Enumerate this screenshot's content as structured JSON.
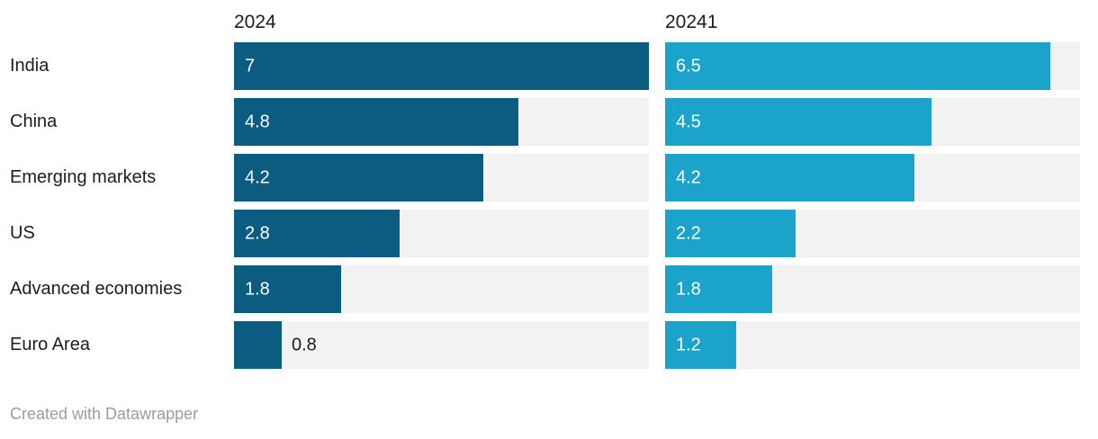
{
  "chart_data": {
    "type": "bar",
    "layout": "split-bars-horizontal",
    "categories": [
      "India",
      "China",
      "Emerging markets",
      "US",
      "Advanced economies",
      "Euro Area"
    ],
    "series": [
      {
        "name": "2024",
        "values": [
          7,
          4.8,
          4.2,
          2.8,
          1.8,
          0.8
        ],
        "labels": [
          "7",
          "4.8",
          "4.2",
          "2.8",
          "1.8",
          "0.8"
        ],
        "color": "#0b5c80"
      },
      {
        "name": "20241",
        "values": [
          6.5,
          4.5,
          4.2,
          2.2,
          1.8,
          1.2
        ],
        "labels": [
          "6.5",
          "4.5",
          "4.2",
          "2.2",
          "1.8",
          "1.2"
        ],
        "color": "#1ba3cc"
      }
    ],
    "xmax": 7,
    "grid": "off",
    "legend": "column-headers-above-bars",
    "track_color": "#f2f2f2",
    "value_label_inside_color": "#ffffff",
    "value_label_outside_color": "#1d1d1d",
    "label_color": "#1d1d1d"
  },
  "footer": {
    "attribution": "Created with Datawrapper"
  }
}
